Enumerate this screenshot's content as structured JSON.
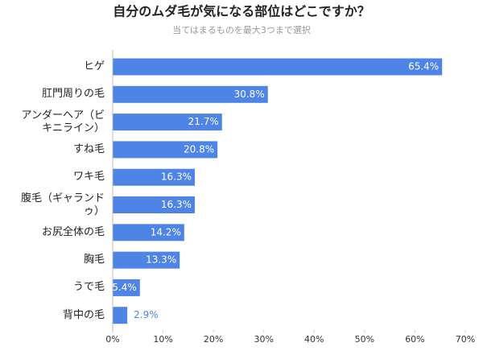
{
  "chart_data": {
    "type": "bar",
    "orientation": "horizontal",
    "title": "自分のムダ毛が気になる部位はどこですか？",
    "subtitle": "当てはまるものを最大3つまで選択",
    "categories": [
      "ヒゲ",
      "肛門周りの毛",
      "アンダーヘア（ビキニライン）",
      "すね毛",
      "ワキ毛",
      "腹毛（ギャランドゥ）",
      "お尻全体の毛",
      "胸毛",
      "うで毛",
      "背中の毛"
    ],
    "values": [
      65.4,
      30.8,
      21.7,
      20.8,
      16.3,
      16.3,
      14.2,
      13.3,
      5.4,
      2.9
    ],
    "value_labels": [
      "65.4%",
      "30.8%",
      "21.7%",
      "20.8%",
      "16.3%",
      "16.3%",
      "14.2%",
      "13.3%",
      "5.4%",
      "2.9%"
    ],
    "color": "#4e84e6",
    "xlim": [
      0,
      70
    ],
    "xticks": [
      {
        "value": 0,
        "label": "0%"
      },
      {
        "value": 10,
        "label": "10%"
      },
      {
        "value": 20,
        "label": "20%"
      },
      {
        "value": 30,
        "label": "30%"
      },
      {
        "value": 40,
        "label": "40%"
      },
      {
        "value": 50,
        "label": "50%"
      },
      {
        "value": 60,
        "label": "60%"
      },
      {
        "value": 70,
        "label": "70%"
      }
    ],
    "grid": false
  }
}
